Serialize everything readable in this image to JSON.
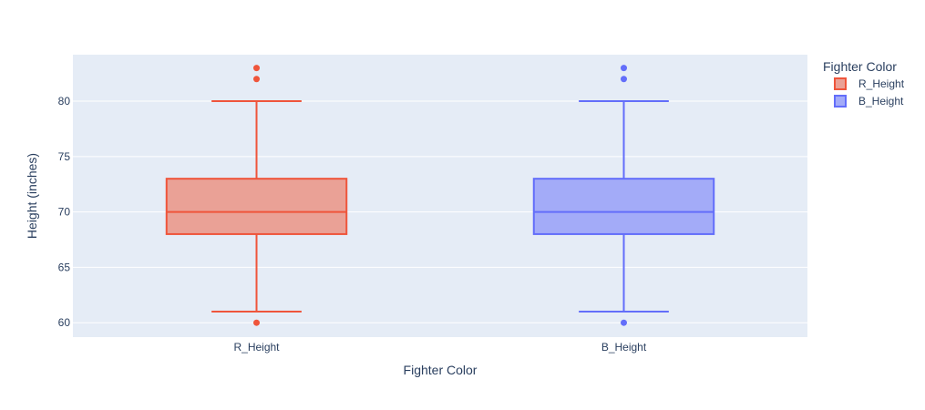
{
  "chart_data": {
    "type": "box",
    "xlabel": "Fighter Color",
    "ylabel": "Height (inches)",
    "categories": [
      "R_Height",
      "B_Height"
    ],
    "ylim": [
      58.7,
      84.2
    ],
    "yticks": [
      60,
      65,
      70,
      75,
      80
    ],
    "grid": true,
    "legend": {
      "title": "Fighter Color",
      "placement": "top-right"
    },
    "series": [
      {
        "name": "R_Height",
        "color": "#EF553B",
        "fill": "#EAA196",
        "min": 61,
        "q1": 68,
        "median": 70,
        "q3": 73,
        "max": 80,
        "outliers": [
          83,
          82,
          60
        ]
      },
      {
        "name": "B_Height",
        "color": "#636EFA",
        "fill": "#A3ABF8",
        "min": 61,
        "q1": 68,
        "median": 70,
        "q3": 73,
        "max": 80,
        "outliers": [
          83,
          82,
          60
        ]
      }
    ],
    "colors": {
      "plot_bg": "#E5ECF6",
      "grid": "#ffffff",
      "text": "#2a3f5f"
    }
  }
}
